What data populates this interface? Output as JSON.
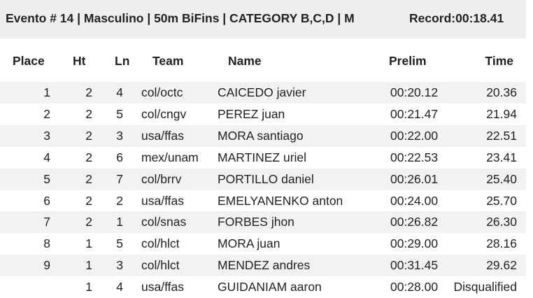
{
  "header": {
    "title": "Evento # 14 | Masculino | 50m BiFins | CATEGORY B,C,D | M",
    "record": "Record:00:18.41"
  },
  "table": {
    "columns": [
      "Place",
      "Ht",
      "Ln",
      "Team",
      "Name",
      "Prelim",
      "Time"
    ],
    "rows": [
      [
        "1",
        "2",
        "4",
        "col/octc",
        "CAICEDO javier",
        "00:20.12",
        "20.36"
      ],
      [
        "2",
        "2",
        "5",
        "col/cngv",
        "PEREZ juan",
        "00:21.47",
        "21.94"
      ],
      [
        "3",
        "2",
        "3",
        "usa/ffas",
        "MORA santiago",
        "00:22.00",
        "22.51"
      ],
      [
        "4",
        "2",
        "6",
        "mex/unam",
        "MARTINEZ uriel",
        "00:22.53",
        "23.41"
      ],
      [
        "5",
        "2",
        "7",
        "col/brrv",
        "PORTILLO daniel",
        "00:26.01",
        "25.40"
      ],
      [
        "6",
        "2",
        "2",
        "usa/ffas",
        "EMELYANENKO anton",
        "00:24.00",
        "25.70"
      ],
      [
        "7",
        "2",
        "1",
        "col/snas",
        "FORBES jhon",
        "00:26.82",
        "26.30"
      ],
      [
        "8",
        "1",
        "5",
        "col/hlct",
        "MORA juan",
        "00:29.00",
        "28.16"
      ],
      [
        "9",
        "1",
        "3",
        "col/hlct",
        "MENDEZ andres",
        "00:31.45",
        "29.62"
      ],
      [
        null,
        "1",
        "4",
        "usa/ffas",
        "GUIDANIAM aaron",
        "00:28.00",
        "Disqualified"
      ]
    ]
  }
}
